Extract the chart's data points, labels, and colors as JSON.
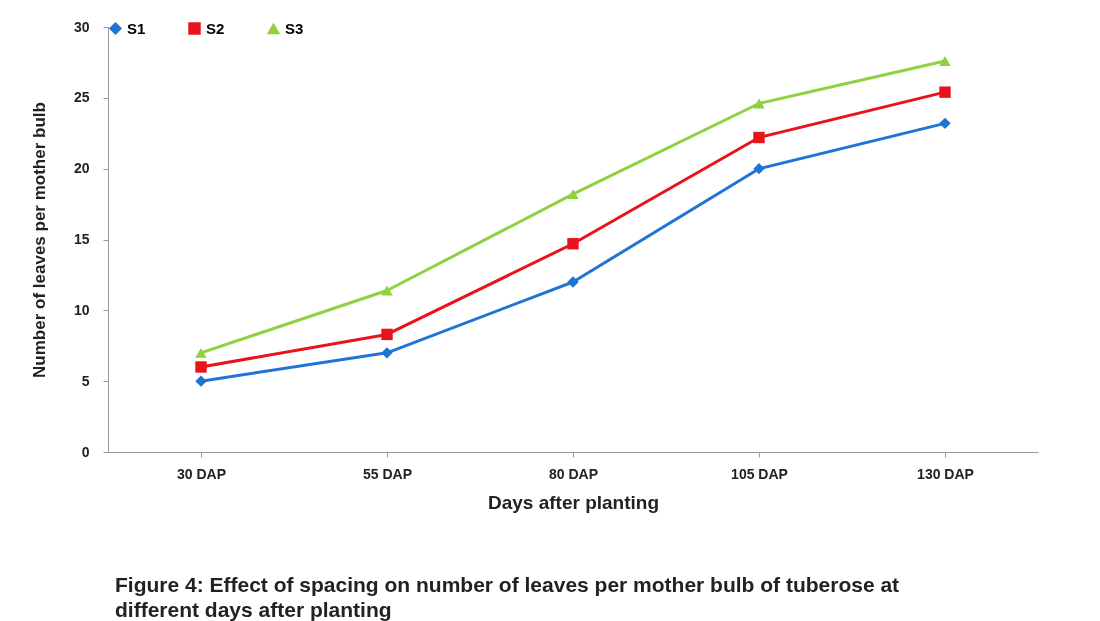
{
  "chart_data": {
    "type": "line",
    "categories": [
      "30 DAP",
      "55 DAP",
      "80 DAP",
      "105 DAP",
      "130 DAP"
    ],
    "series": [
      {
        "name": "S1",
        "color": "#1f74d6",
        "marker": "diamond",
        "values": [
          5,
          7,
          12,
          20,
          23.2
        ]
      },
      {
        "name": "S2",
        "color": "#e8141c",
        "marker": "square",
        "values": [
          6,
          8.3,
          14.7,
          22.2,
          25.4
        ]
      },
      {
        "name": "S3",
        "color": "#8fd13f",
        "marker": "triangle",
        "values": [
          7,
          11.4,
          18.2,
          24.6,
          27.6
        ]
      }
    ],
    "xlabel": "Days after planting",
    "ylabel": "Number of leaves per mother bulb",
    "ylim": [
      0,
      30
    ],
    "yticks": [
      0,
      5,
      10,
      15,
      20,
      25,
      30
    ],
    "grid": false,
    "legend": "top",
    "annotations": [
      "Figure 4: Effect of spacing on number of leaves per mother bulb of tuberose at different days after planting"
    ]
  }
}
